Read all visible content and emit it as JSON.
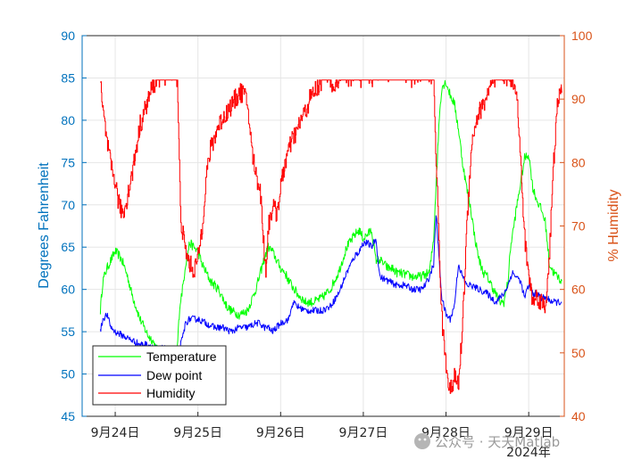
{
  "chart_data": {
    "type": "line",
    "xlabel_secondary": "2024年",
    "x_ticks": [
      "9月24日",
      "9月25日",
      "9月26日",
      "9月27日",
      "9月28日",
      "9月29日"
    ],
    "x_range_days": [
      23.6,
      29.43
    ],
    "y_left": {
      "label": "Degrees Fahrenheit",
      "range": [
        45,
        90
      ],
      "ticks": [
        "45",
        "50",
        "55",
        "60",
        "65",
        "70",
        "75",
        "80",
        "85",
        "90"
      ]
    },
    "y_right": {
      "label": "% Humidity",
      "range": [
        40,
        100
      ],
      "ticks": [
        "40",
        "50",
        "60",
        "70",
        "80",
        "90",
        "100"
      ]
    },
    "grid": true,
    "legend_position": "bottom-left",
    "series": [
      {
        "name": "Temperature",
        "color": "#00FF00",
        "axis": "left",
        "x": [
          23.82,
          23.85,
          23.9,
          23.95,
          24.0,
          24.05,
          24.1,
          24.15,
          24.2,
          24.25,
          24.3,
          24.35,
          24.4,
          24.45,
          24.5,
          24.55,
          24.6,
          24.65,
          24.7,
          24.75,
          24.78,
          24.82,
          24.85,
          24.9,
          24.95,
          25.0,
          25.05,
          25.1,
          25.15,
          25.2,
          25.25,
          25.3,
          25.35,
          25.4,
          25.5,
          25.6,
          25.7,
          25.8,
          25.85,
          25.9,
          25.95,
          26.0,
          26.05,
          26.1,
          26.2,
          26.3,
          26.4,
          26.5,
          26.6,
          26.7,
          26.8,
          26.9,
          26.95,
          27.0,
          27.05,
          27.1,
          27.15,
          27.2,
          27.25,
          27.3,
          27.35,
          27.4,
          27.5,
          27.6,
          27.7,
          27.8,
          27.85,
          27.88,
          27.92,
          27.95,
          28.0,
          28.05,
          28.1,
          28.15,
          28.2,
          28.25,
          28.3,
          28.35,
          28.4,
          28.45,
          28.5,
          28.55,
          28.6,
          28.65,
          28.7,
          28.75,
          28.78,
          28.82,
          28.85,
          28.9,
          28.95,
          29.0,
          29.05,
          29.1,
          29.15,
          29.2,
          29.25,
          29.3,
          29.35,
          29.4
        ],
        "y": [
          57.5,
          61.0,
          62.5,
          63.5,
          64.5,
          64.0,
          63.0,
          61.5,
          59.5,
          58.0,
          56.5,
          55.5,
          54.5,
          54.0,
          53.0,
          52.5,
          52.0,
          51.5,
          52.0,
          53.0,
          58.0,
          60.5,
          63.0,
          65.5,
          65.0,
          64.5,
          63.0,
          62.0,
          61.0,
          60.5,
          60.0,
          59.0,
          58.0,
          57.5,
          57.0,
          57.5,
          60.0,
          63.5,
          65.0,
          64.5,
          63.5,
          62.5,
          62.0,
          61.0,
          59.5,
          58.5,
          58.5,
          59.0,
          60.0,
          62.0,
          65.0,
          66.5,
          67.0,
          66.0,
          66.5,
          67.0,
          63.5,
          63.5,
          63.0,
          62.5,
          62.5,
          62.0,
          61.8,
          61.5,
          61.5,
          62.0,
          66.0,
          72.5,
          80.5,
          84.0,
          84.5,
          83.0,
          82.0,
          79.0,
          75.0,
          72.0,
          69.5,
          66.0,
          63.5,
          62.0,
          61.5,
          60.5,
          59.5,
          58.5,
          58.5,
          61.0,
          65.0,
          67.5,
          69.5,
          72.5,
          75.5,
          76.0,
          72.0,
          70.5,
          69.5,
          68.0,
          63.0,
          62.0,
          61.5,
          61.0
        ]
      },
      {
        "name": "Dew point",
        "color": "#0000FF",
        "axis": "left",
        "x": [
          23.82,
          23.85,
          23.9,
          23.95,
          24.0,
          24.1,
          24.2,
          24.3,
          24.4,
          24.5,
          24.6,
          24.7,
          24.78,
          24.82,
          24.85,
          24.9,
          25.0,
          25.1,
          25.2,
          25.3,
          25.4,
          25.5,
          25.6,
          25.7,
          25.75,
          25.8,
          25.85,
          25.9,
          26.0,
          26.1,
          26.15,
          26.2,
          26.3,
          26.4,
          26.5,
          26.6,
          26.7,
          26.8,
          26.9,
          26.95,
          27.0,
          27.05,
          27.1,
          27.15,
          27.2,
          27.3,
          27.4,
          27.5,
          27.6,
          27.7,
          27.75,
          27.8,
          27.85,
          27.88,
          27.92,
          27.95,
          28.0,
          28.05,
          28.1,
          28.15,
          28.2,
          28.25,
          28.3,
          28.4,
          28.5,
          28.55,
          28.6,
          28.65,
          28.7,
          28.75,
          28.8,
          28.85,
          28.9,
          28.95,
          29.0,
          29.05,
          29.1,
          29.15,
          29.2,
          29.3,
          29.4
        ],
        "y": [
          55.0,
          56.5,
          57.0,
          55.5,
          55.0,
          54.5,
          54.0,
          53.5,
          53.5,
          53.0,
          53.0,
          52.5,
          53.0,
          54.5,
          56.0,
          56.5,
          56.5,
          56.0,
          55.5,
          55.5,
          55.0,
          55.5,
          55.5,
          56.0,
          56.0,
          55.5,
          55.5,
          55.0,
          56.0,
          56.5,
          58.5,
          58.0,
          57.5,
          57.5,
          57.5,
          58.0,
          59.5,
          62.0,
          64.0,
          64.5,
          65.5,
          65.5,
          65.0,
          66.0,
          61.5,
          61.0,
          60.5,
          60.5,
          60.0,
          60.0,
          60.5,
          61.5,
          63.0,
          69.0,
          63.0,
          59.0,
          57.0,
          56.5,
          58.0,
          63.0,
          61.5,
          60.5,
          60.5,
          60.0,
          59.5,
          59.0,
          58.5,
          59.0,
          59.5,
          60.5,
          62.0,
          61.5,
          61.0,
          59.0,
          60.5,
          59.5,
          59.5,
          59.0,
          59.0,
          58.5,
          58.5
        ]
      },
      {
        "name": "Humidity",
        "color": "#FF0000",
        "axis": "right",
        "x": [
          23.82,
          23.85,
          23.9,
          23.95,
          24.0,
          24.02,
          24.05,
          24.1,
          24.15,
          24.2,
          24.25,
          24.3,
          24.35,
          24.4,
          24.45,
          24.5,
          24.55,
          24.6,
          24.65,
          24.7,
          24.75,
          24.78,
          24.8,
          24.85,
          24.9,
          24.95,
          25.0,
          25.05,
          25.1,
          25.15,
          25.2,
          25.25,
          25.3,
          25.35,
          25.4,
          25.45,
          25.5,
          25.55,
          25.6,
          25.65,
          25.7,
          25.75,
          25.8,
          25.82,
          25.85,
          25.9,
          25.95,
          26.0,
          26.05,
          26.1,
          26.15,
          26.2,
          26.25,
          26.3,
          26.35,
          26.4,
          26.45,
          26.5,
          26.55,
          26.6,
          26.65,
          26.7,
          26.75,
          26.8,
          26.85,
          26.9,
          26.95,
          27.0,
          27.05,
          27.1,
          27.15,
          27.2,
          27.3,
          27.4,
          27.5,
          27.6,
          27.7,
          27.8,
          27.85,
          27.88,
          27.92,
          27.95,
          28.0,
          28.05,
          28.1,
          28.15,
          28.2,
          28.25,
          28.3,
          28.35,
          28.4,
          28.45,
          28.5,
          28.55,
          28.6,
          28.65,
          28.7,
          28.75,
          28.8,
          28.85,
          28.9,
          28.95,
          29.0,
          29.05,
          29.1,
          29.15,
          29.2,
          29.25,
          29.3,
          29.35,
          29.4
        ],
        "y": [
          92,
          88,
          83,
          79,
          77,
          75,
          73,
          72,
          75,
          78,
          82,
          86,
          88,
          90,
          92,
          93,
          93,
          93,
          93,
          93,
          93,
          76,
          70,
          66,
          64,
          63,
          65,
          70,
          78,
          82,
          84,
          86,
          87,
          88,
          89,
          90,
          91,
          91,
          89,
          82,
          78,
          76,
          66,
          63,
          70,
          73,
          72,
          76,
          80,
          82,
          84,
          85,
          87,
          88,
          90,
          91,
          92,
          93,
          93,
          93,
          92,
          93,
          93,
          93,
          93,
          93,
          93,
          93,
          93,
          93,
          93,
          93,
          93,
          93,
          93,
          93,
          93,
          93,
          93,
          80,
          65,
          55,
          48,
          44,
          46,
          45,
          55,
          70,
          82,
          86,
          88,
          89,
          91,
          92,
          93,
          93,
          93,
          93,
          93,
          92,
          80,
          68,
          62,
          58,
          59,
          58,
          57,
          66,
          80,
          90,
          91
        ]
      }
    ]
  },
  "legend": {
    "items": [
      "Temperature",
      "Dew point",
      "Humidity"
    ]
  },
  "watermark": {
    "text": "公众号 · 天天Matlab"
  }
}
